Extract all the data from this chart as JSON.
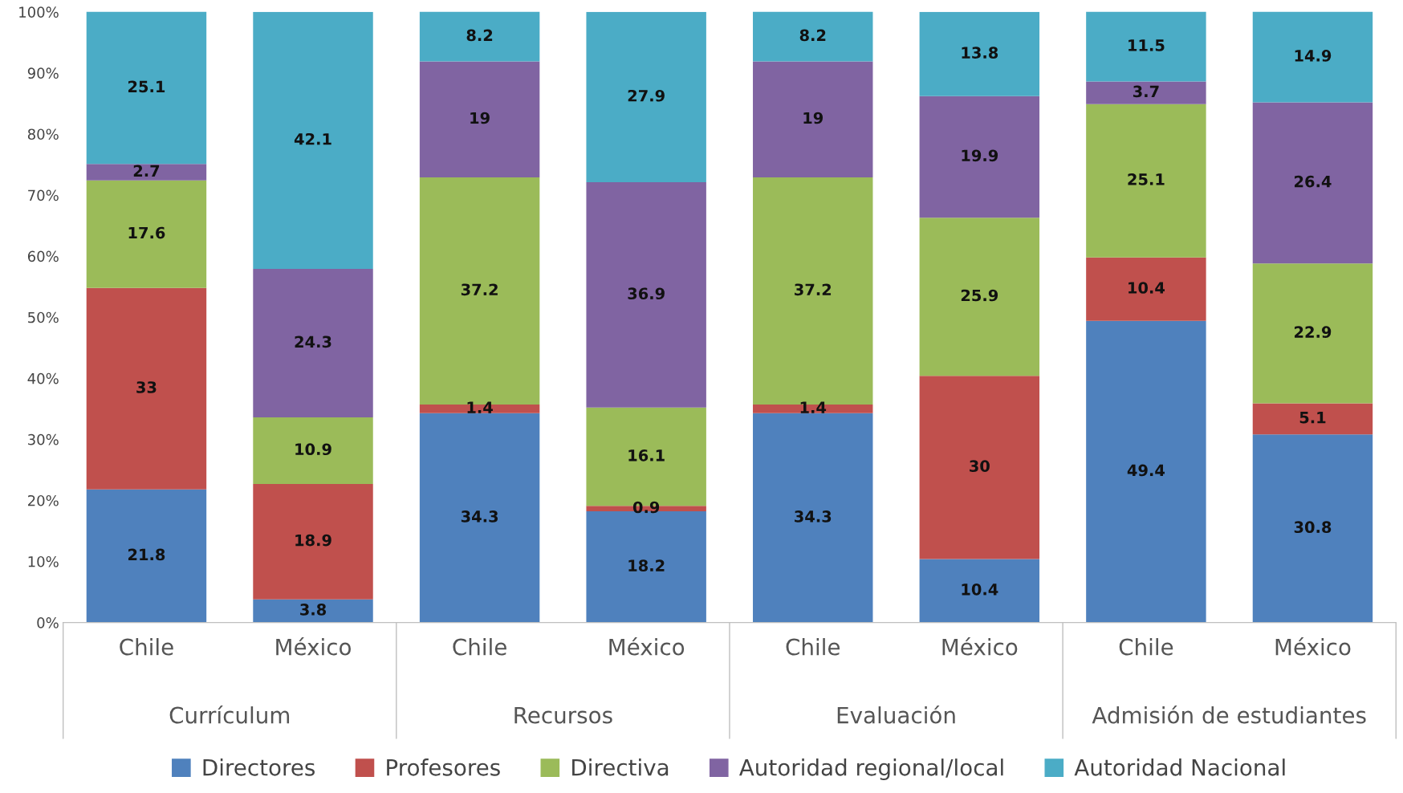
{
  "chart_data": {
    "type": "bar",
    "stacked": true,
    "categories": [
      "Chile",
      "México",
      "Chile",
      "México",
      "Chile",
      "México",
      "Chile",
      "México"
    ],
    "series": [
      {
        "name": "Directores",
        "color": "#4f81bd",
        "values": [
          21.8,
          3.8,
          34.3,
          18.2,
          34.3,
          10.4,
          49.4,
          30.8
        ]
      },
      {
        "name": "Profesores",
        "color": "#c0504d",
        "values": [
          33,
          18.9,
          1.4,
          0.9,
          1.4,
          30,
          10.4,
          5.1
        ]
      },
      {
        "name": "Directiva",
        "color": "#9bbb59",
        "values": [
          17.6,
          10.9,
          37.2,
          16.1,
          37.2,
          25.9,
          25.1,
          22.9
        ]
      },
      {
        "name": "Autoridad regional/local",
        "color": "#8064a2",
        "values": [
          2.7,
          24.3,
          19,
          36.9,
          19,
          19.9,
          3.7,
          26.4
        ]
      },
      {
        "name": "Autoridad Nacional",
        "color": "#4bacc6",
        "values": [
          25.1,
          42.1,
          8.2,
          27.9,
          8.2,
          13.8,
          11.5,
          14.9
        ]
      }
    ],
    "annotations": [
      "Currículum",
      "Recursos",
      "Evaluación",
      "Admisión de estudiantes"
    ],
    "ylim": [
      0,
      100
    ],
    "yticks": [
      {
        "value": 0,
        "label": "0%"
      },
      {
        "value": 10,
        "label": "10%"
      },
      {
        "value": 20,
        "label": "20%"
      },
      {
        "value": 30,
        "label": "30%"
      },
      {
        "value": 40,
        "label": "40%"
      },
      {
        "value": 50,
        "label": "50%"
      },
      {
        "value": 60,
        "label": "60%"
      },
      {
        "value": 70,
        "label": "70%"
      },
      {
        "value": 80,
        "label": "80%"
      },
      {
        "value": 90,
        "label": "90%"
      },
      {
        "value": 100,
        "label": "100%"
      }
    ],
    "data_labels": true,
    "grid": false,
    "legend": "bottom"
  }
}
